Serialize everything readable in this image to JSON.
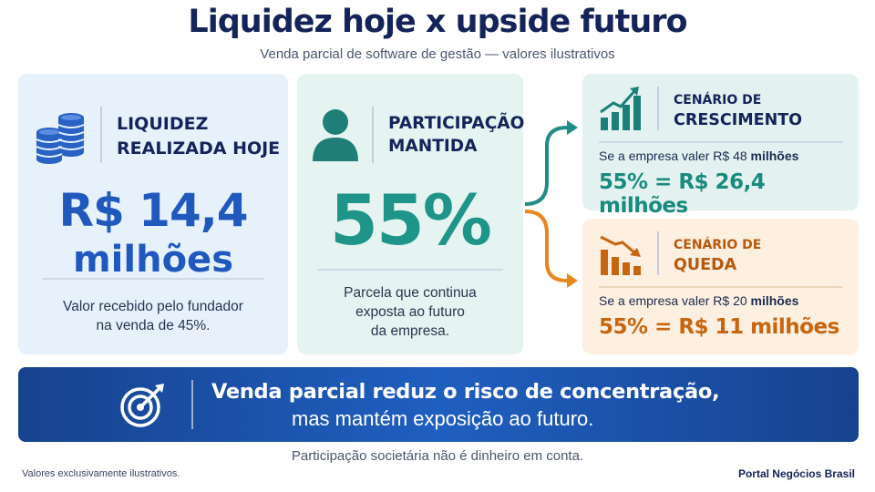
{
  "header": {
    "title": "Liquidez hoje x upside futuro",
    "subtitle": "Venda parcial de software de gestão — valores ilustrativos"
  },
  "liquidity_card": {
    "heading_line1": "LIQUIDEZ",
    "heading_line2": "REALIZADA HOJE",
    "amount_line1": "R$ 14,4",
    "amount_line2": "milhões",
    "note_line1": "Valor recebido pelo fundador",
    "note_line2": "na venda de 45%.",
    "icon": "coins-icon",
    "accent_color": "#2058be"
  },
  "stake_card": {
    "heading_line1": "PARTICIPAÇÃO",
    "heading_line2": "MANTIDA",
    "percent": "55%",
    "note_line1": "Parcela que continua",
    "note_line2": "exposta ao futuro",
    "note_line3": "da empresa.",
    "icon": "person-icon",
    "accent_color": "#1f9488"
  },
  "scenario_growth": {
    "heading_line1": "CENÁRIO DE",
    "heading_line2": "CRESCIMENTO",
    "condition_prefix": "Se a empresa valer R$ 48",
    "condition_bold": "milhões",
    "result": "55% = R$ 26,4 milhões",
    "icon": "growth-chart-icon",
    "accent_color": "#1a8a7e"
  },
  "scenario_fall": {
    "heading_line1": "CENÁRIO DE",
    "heading_line2": "QUEDA",
    "condition_prefix": "Se a empresa valer R$ 20",
    "condition_bold": "milhões",
    "result": "55% = R$ 11 milhões",
    "icon": "decline-chart-icon",
    "accent_color": "#c8650f"
  },
  "banner": {
    "line1": "Venda parcial reduz o risco de concentração,",
    "line2": "mas mantém exposição ao futuro.",
    "icon": "target-icon"
  },
  "footer": {
    "note": "Participação societária não é dinheiro em conta.",
    "disclaimer": "Valores exclusivamente ilustrativos.",
    "brand": "Portal Negócios Brasil"
  }
}
